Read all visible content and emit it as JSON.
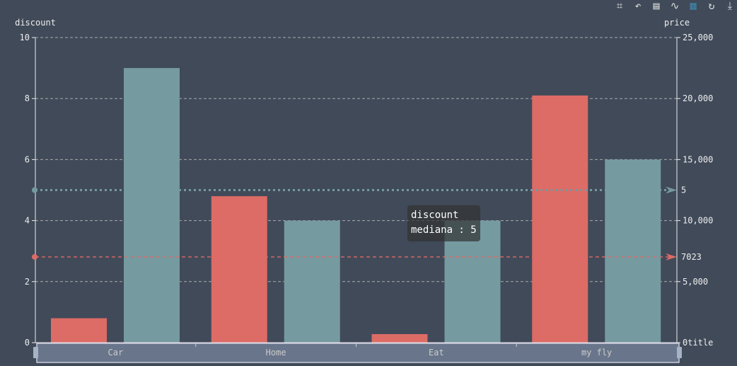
{
  "toolbox": [
    {
      "name": "data-zoom-icon",
      "glyph": "⌗"
    },
    {
      "name": "zoom-reset-icon",
      "glyph": "↶"
    },
    {
      "name": "data-view-icon",
      "glyph": "▤"
    },
    {
      "name": "line-chart-icon",
      "glyph": "∿"
    },
    {
      "name": "bar-chart-icon",
      "glyph": "▥",
      "active": true
    },
    {
      "name": "restore-icon",
      "glyph": "↻"
    },
    {
      "name": "save-image-icon",
      "glyph": "⤓"
    }
  ],
  "tooltip": {
    "line1": "discount",
    "line2": "mediana : 5"
  },
  "chart_data": {
    "type": "bar",
    "categories": [
      "Car",
      "Home",
      "Eat",
      "my fly"
    ],
    "series": [
      {
        "name": "price",
        "axis": "right",
        "color": "#dd6b66",
        "values": [
          2000,
          12000,
          700,
          20250
        ],
        "markLine": {
          "label": "7023",
          "value": 7023,
          "color": "#dd6b66"
        }
      },
      {
        "name": "discount",
        "axis": "left",
        "color": "#759aa0",
        "values": [
          9,
          4,
          4,
          6
        ],
        "markLine": {
          "label": "5",
          "name": "mediana",
          "value": 5,
          "color": "#759aa0"
        }
      }
    ],
    "yAxisLeft": {
      "name": "discount",
      "min": 0,
      "max": 10,
      "ticks": [
        "0",
        "2",
        "4",
        "6",
        "8",
        "10"
      ]
    },
    "yAxisRight": {
      "name": "price",
      "min": 0,
      "max": 25000,
      "ticks": [
        "0",
        "5,000",
        "10,000",
        "15,000",
        "20,000",
        "25,000"
      ],
      "bottom_suffix": "title"
    },
    "grid": true,
    "dataZoom": {
      "start": 0,
      "end": 100
    }
  }
}
